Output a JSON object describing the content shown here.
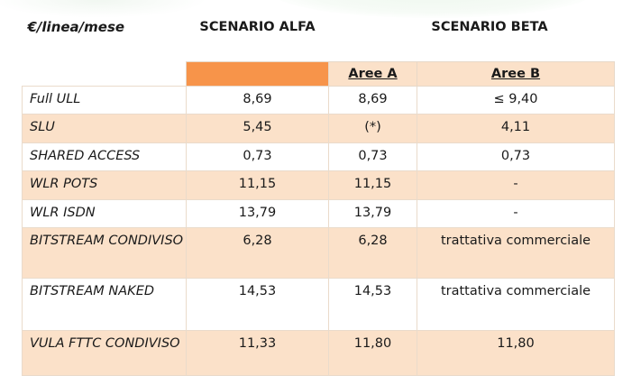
{
  "header": {
    "unit_label": "€/linea/mese",
    "scenario_alfa": "SCENARIO ALFA",
    "scenario_beta": "SCENARIO BETA",
    "aree_a": "Aree A",
    "aree_b": "Aree B"
  },
  "colors": {
    "accent_orange": "#f7944a",
    "peach_band": "#fbe1c9",
    "border": "#eadbcb"
  },
  "rows": [
    {
      "label": "Full ULL",
      "alfa": "8,69",
      "aree_a": "8,69",
      "aree_b": "≤ 9,40"
    },
    {
      "label": "SLU",
      "alfa": "5,45",
      "aree_a": "(*)",
      "aree_b": "4,11"
    },
    {
      "label": "SHARED ACCESS",
      "alfa": "0,73",
      "aree_a": "0,73",
      "aree_b": "0,73"
    },
    {
      "label": "WLR POTS",
      "alfa": "11,15",
      "aree_a": "11,15",
      "aree_b": "-"
    },
    {
      "label": "WLR ISDN",
      "alfa": "13,79",
      "aree_a": "13,79",
      "aree_b": "-"
    },
    {
      "label": "BITSTREAM CONDIVISO",
      "alfa": "6,28",
      "aree_a": "6,28",
      "aree_b": "trattativa commerciale"
    },
    {
      "label": "BITSTREAM NAKED",
      "alfa": "14,53",
      "aree_a": "14,53",
      "aree_b": "trattativa commerciale"
    },
    {
      "label": "VULA FTTC CONDIVISO",
      "alfa": "11,33",
      "aree_a": "11,80",
      "aree_b": "11,80"
    }
  ]
}
